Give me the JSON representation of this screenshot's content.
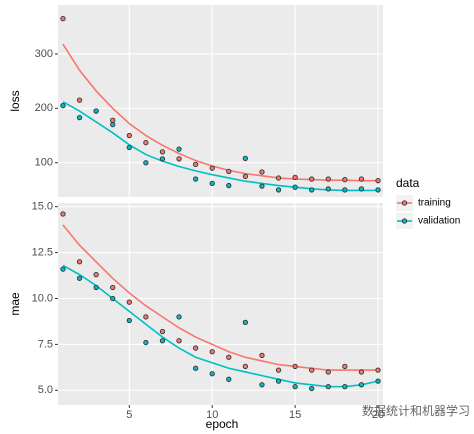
{
  "chart_data": {
    "type": "line",
    "x_label": "epoch",
    "legend_title": "data",
    "watermark": "数据统计和机器学习",
    "x": [
      1,
      2,
      3,
      4,
      5,
      6,
      7,
      8,
      9,
      10,
      11,
      12,
      13,
      14,
      15,
      16,
      17,
      18,
      19,
      20
    ],
    "xlim": [
      0.7,
      20.3
    ],
    "xticks": [
      5,
      10,
      15,
      20
    ],
    "grid": true,
    "facets": [
      {
        "ylabel": "loss",
        "ylim": [
          37,
          390
        ],
        "yticks": [
          100,
          200,
          300
        ],
        "series": [
          {
            "name": "training",
            "color": "#F8766D",
            "values": [
              365,
              215,
              195,
              178,
              150,
              137,
              120,
              107,
              97,
              90,
              84,
              75,
              83,
              72,
              73,
              70,
              70,
              69,
              70,
              67
            ],
            "smooth": [
              318,
              270,
              232,
              200,
              172,
              150,
              132,
              117,
              104,
              94,
              86,
              80,
              76,
              72,
              70,
              69,
              68,
              68,
              67,
              67
            ]
          },
          {
            "name": "validation",
            "color": "#00BFC4",
            "values": [
              205,
              183,
              195,
              170,
              128,
              100,
              107,
              125,
              70,
              62,
              58,
              108,
              57,
              50,
              55,
              50,
              52,
              50,
              52,
              50
            ],
            "smooth": [
              212,
              195,
              175,
              155,
              133,
              115,
              103,
              93,
              85,
              78,
              72,
              66,
              62,
              58,
              55,
              52,
              50,
              49,
              49,
              49
            ]
          }
        ]
      },
      {
        "ylabel": "mae",
        "ylim": [
          4.2,
          15.2
        ],
        "yticks": [
          {
            "value": 5,
            "label": "5.0"
          },
          7.5,
          {
            "value": 10,
            "label": "10.0"
          },
          12.5,
          {
            "value": 15,
            "label": "15.0"
          }
        ],
        "series": [
          {
            "name": "training",
            "color": "#F8766D",
            "values": [
              14.6,
              12.0,
              11.3,
              10.6,
              9.8,
              9.0,
              8.2,
              7.7,
              7.3,
              7.1,
              6.8,
              6.3,
              6.9,
              6.1,
              6.3,
              6.1,
              6.0,
              6.3,
              6.0,
              6.1
            ],
            "smooth": [
              14.0,
              12.9,
              12.0,
              11.1,
              10.3,
              9.6,
              9.0,
              8.4,
              7.9,
              7.5,
              7.1,
              6.8,
              6.6,
              6.4,
              6.3,
              6.2,
              6.1,
              6.1,
              6.1,
              6.1
            ]
          },
          {
            "name": "validation",
            "color": "#00BFC4",
            "values": [
              11.6,
              11.1,
              10.6,
              10.0,
              8.8,
              7.6,
              7.7,
              9.0,
              6.2,
              5.9,
              5.6,
              8.7,
              5.3,
              5.5,
              5.2,
              5.1,
              5.2,
              5.2,
              5.3,
              5.5
            ],
            "smooth": [
              11.8,
              11.3,
              10.7,
              10.0,
              9.3,
              8.6,
              7.9,
              7.3,
              6.8,
              6.5,
              6.2,
              6.0,
              5.8,
              5.6,
              5.4,
              5.3,
              5.2,
              5.2,
              5.3,
              5.5
            ]
          }
        ]
      }
    ]
  }
}
